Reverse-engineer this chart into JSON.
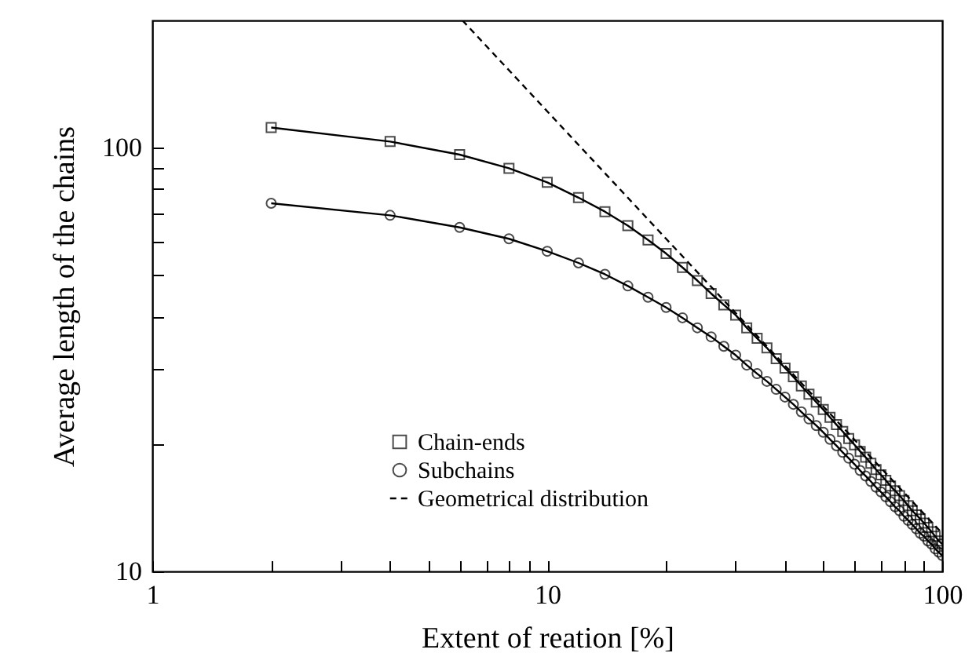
{
  "chart_data": {
    "type": "line",
    "xlabel": "Extent of reation [%]",
    "ylabel": "Average length of the chains",
    "log": "xy",
    "xlim": [
      1,
      100
    ],
    "ylim": [
      10,
      200
    ],
    "xticks": [
      1,
      {
        "value": 2,
        "label": null
      },
      {
        "value": 3,
        "label": null
      },
      {
        "value": 4,
        "label": null
      },
      {
        "value": 5,
        "label": null
      },
      {
        "value": 6,
        "label": null
      },
      {
        "value": 7,
        "label": null
      },
      {
        "value": 8,
        "label": null
      },
      {
        "value": 9,
        "label": null
      },
      10,
      {
        "value": 20,
        "label": null
      },
      {
        "value": 30,
        "label": null
      },
      {
        "value": 40,
        "label": null
      },
      {
        "value": 50,
        "label": null
      },
      {
        "value": 60,
        "label": null
      },
      {
        "value": 70,
        "label": null
      },
      {
        "value": 80,
        "label": null
      },
      {
        "value": 90,
        "label": null
      },
      100
    ],
    "yticks": [
      10,
      {
        "value": 20,
        "label": null
      },
      {
        "value": 30,
        "label": null
      },
      {
        "value": 40,
        "label": null
      },
      {
        "value": 50,
        "label": null
      },
      {
        "value": 60,
        "label": null
      },
      {
        "value": 70,
        "label": null
      },
      {
        "value": 80,
        "label": null
      },
      {
        "value": 90,
        "label": null
      },
      100
    ],
    "grid": false,
    "legend": "bottom",
    "x": [
      2,
      4,
      6,
      8,
      10,
      12,
      14,
      16,
      18,
      20,
      22,
      24,
      26,
      28,
      30,
      32,
      34,
      36,
      38,
      40,
      42,
      44,
      46,
      48,
      50,
      52,
      54,
      56,
      58,
      60,
      62,
      64,
      66,
      68,
      70,
      72,
      74,
      76,
      78,
      80,
      82,
      84,
      86,
      88,
      90,
      92,
      94,
      96,
      98,
      100
    ],
    "series": [
      {
        "name": "Chain-ends",
        "color": "#000000",
        "marker": "square",
        "line_style": "solid",
        "values": [
          111.7,
          103.5,
          96.4,
          89.5,
          82.9,
          76.3,
          70.7,
          65.5,
          60.6,
          56.3,
          52.2,
          48.6,
          45.3,
          42.6,
          40.3,
          37.6,
          35.5,
          33.7,
          31.8,
          30.2,
          28.8,
          27.4,
          26.2,
          25.1,
          24.1,
          23.1,
          22.2,
          21.4,
          20.6,
          19.9,
          19.2,
          18.6,
          18.0,
          17.4,
          16.9,
          16.4,
          15.9,
          15.5,
          15.1,
          14.7,
          14.3,
          13.9,
          13.6,
          13.3,
          13.0,
          12.7,
          12.4,
          12.1,
          11.8,
          11.6
        ]
      },
      {
        "name": "Subchains",
        "color": "#000000",
        "marker": "circle",
        "line_style": "solid",
        "values": [
          74.0,
          69.3,
          64.9,
          61.0,
          57.0,
          53.5,
          50.3,
          47.2,
          44.4,
          42.0,
          39.7,
          37.6,
          35.8,
          34.0,
          32.4,
          30.7,
          29.3,
          28.1,
          26.9,
          25.8,
          24.8,
          23.8,
          22.9,
          22.1,
          21.3,
          20.5,
          19.8,
          19.1,
          18.5,
          17.9,
          17.3,
          16.8,
          16.3,
          15.8,
          15.4,
          15.0,
          14.6,
          14.2,
          13.9,
          13.5,
          13.2,
          12.9,
          12.6,
          12.3,
          12.1,
          11.8,
          11.6,
          11.3,
          11.1,
          10.9
        ]
      },
      {
        "name": "Geometrical distribution",
        "color": "#000000",
        "marker": "none",
        "line_style": "dashed",
        "x": [
          6.1,
          20,
          100
        ],
        "values": [
          200,
          61,
          12.3
        ]
      }
    ]
  }
}
